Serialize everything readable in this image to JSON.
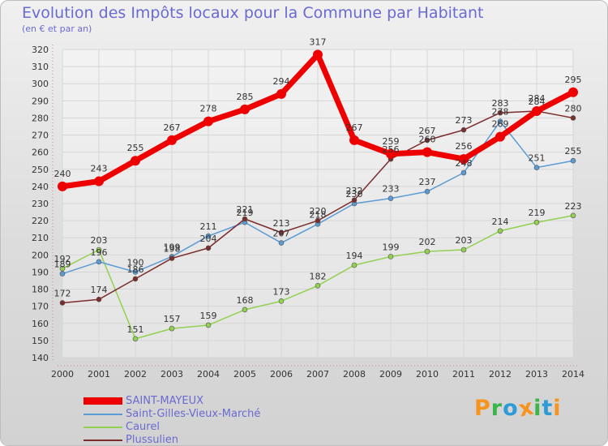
{
  "title": "Evolution des Impôts locaux pour la Commune par Habitant",
  "subtitle": "(en € et par an)",
  "brand": "Proxiti",
  "chart_data": {
    "type": "line",
    "x": [
      2000,
      2001,
      2002,
      2003,
      2004,
      2005,
      2006,
      2007,
      2008,
      2009,
      2010,
      2011,
      2012,
      2013,
      2014
    ],
    "ylim": [
      140,
      320
    ],
    "yticks": [
      140,
      150,
      160,
      170,
      180,
      190,
      200,
      210,
      220,
      230,
      240,
      250,
      260,
      270,
      280,
      290,
      300,
      310,
      320
    ],
    "grid": true,
    "legend_position": "bottom-left",
    "series": [
      {
        "name": "SAINT-MAYEUX",
        "color": "#ee0000",
        "values": [
          240,
          243,
          255,
          267,
          278,
          285,
          294,
          317,
          267,
          259,
          260,
          256,
          269,
          284,
          295
        ]
      },
      {
        "name": "Saint-Gilles-Vieux-Marché",
        "color": "#5b9bd5",
        "values": [
          189,
          196,
          190,
          199,
          211,
          219,
          207,
          218,
          230,
          233,
          237,
          248,
          278,
          251,
          255
        ]
      },
      {
        "name": "Caurel",
        "color": "#92d050",
        "values": [
          192,
          203,
          151,
          157,
          159,
          168,
          173,
          182,
          194,
          199,
          202,
          203,
          214,
          219,
          223
        ]
      },
      {
        "name": "Plussulien",
        "color": "#7b2c2c",
        "values": [
          172,
          174,
          186,
          198,
          204,
          221,
          213,
          220,
          232,
          256,
          267,
          273,
          283,
          284,
          280
        ]
      }
    ]
  }
}
